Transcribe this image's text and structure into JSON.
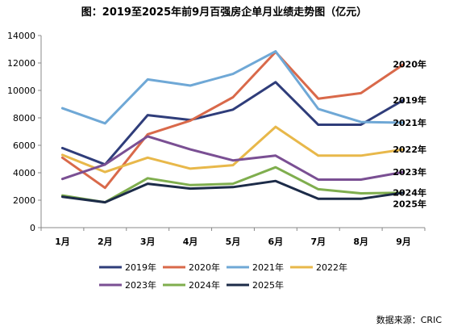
{
  "chart_data": {
    "type": "line",
    "title": "图：2019至2025年前9月百强房企单月业绩走势图（亿元）",
    "source": "数据来源：CRIC",
    "categories": [
      "1月",
      "2月",
      "3月",
      "4月",
      "5月",
      "6月",
      "7月",
      "8月",
      "9月"
    ],
    "ylim": [
      0,
      14000
    ],
    "yticks": [
      0,
      2000,
      4000,
      6000,
      8000,
      10000,
      12000,
      14000
    ],
    "grid": false,
    "legend_position": "bottom",
    "series": [
      {
        "name": "2019年",
        "color": "#2f3d7a",
        "end_label": "2019年",
        "values": [
          5800,
          4600,
          8200,
          7850,
          8600,
          10600,
          7500,
          7500,
          9300
        ]
      },
      {
        "name": "2020年",
        "color": "#d9694a",
        "end_label": "2020年",
        "values": [
          5100,
          2900,
          6800,
          7800,
          9500,
          12800,
          9400,
          9800,
          11900
        ]
      },
      {
        "name": "2021年",
        "color": "#6fa8d6",
        "end_label": "2021年",
        "values": [
          8700,
          7600,
          10800,
          10350,
          11200,
          12850,
          8650,
          7700,
          7650
        ]
      },
      {
        "name": "2022年",
        "color": "#e8b84a",
        "end_label": "2022年",
        "values": [
          5300,
          4050,
          5100,
          4300,
          4550,
          7350,
          5250,
          5250,
          5700
        ]
      },
      {
        "name": "2023年",
        "color": "#7a4f93",
        "end_label": "2023年",
        "values": [
          3550,
          4600,
          6650,
          5700,
          4900,
          5250,
          3500,
          3500,
          4050
        ]
      },
      {
        "name": "2024年",
        "color": "#7fae4e",
        "end_label": "2024年",
        "values": [
          2350,
          1850,
          3600,
          3100,
          3200,
          4400,
          2800,
          2500,
          2550
        ]
      },
      {
        "name": "2025年",
        "color": "#1c2b48",
        "end_label": "2025年",
        "values": [
          2250,
          1850,
          3200,
          2850,
          2950,
          3400,
          2100,
          2100,
          2550
        ]
      }
    ]
  }
}
